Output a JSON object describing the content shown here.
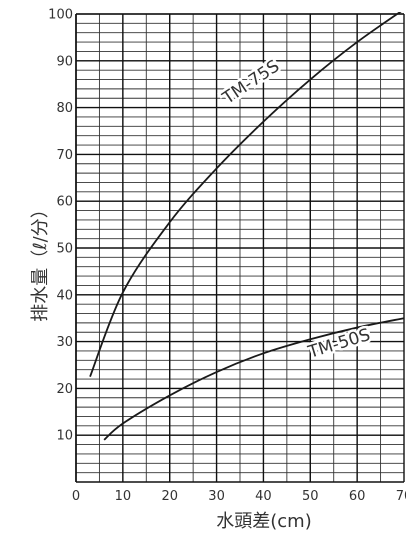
{
  "chart_data": {
    "type": "line",
    "title": "",
    "xlabel": "水頭差(cm)",
    "ylabel": "排水量（ℓ/分）",
    "xlim": [
      0,
      70
    ],
    "ylim": [
      0,
      100
    ],
    "x_ticks": [
      0,
      10,
      20,
      30,
      40,
      50,
      60,
      70
    ],
    "y_ticks": [
      10,
      20,
      30,
      40,
      50,
      60,
      70,
      80,
      90,
      100
    ],
    "x_tick_labels": [
      "0",
      "10",
      "20",
      "30",
      "40",
      "50",
      "60",
      "70"
    ],
    "y_tick_labels": [
      "10",
      "20",
      "30",
      "40",
      "50",
      "60",
      "70",
      "80",
      "90",
      "100"
    ],
    "grid": true,
    "grid_minor_x_step": 5,
    "grid_minor_y_step": 2,
    "series": [
      {
        "name": "TM-75S",
        "color": "#1a1a1a",
        "x": [
          3,
          10,
          20,
          30,
          40,
          50,
          60,
          70
        ],
        "y": [
          22.5,
          40.5,
          55.5,
          67,
          77,
          86,
          94,
          101
        ]
      },
      {
        "name": "TM-50S",
        "color": "#1a1a1a",
        "x": [
          6,
          10,
          20,
          30,
          40,
          50,
          60,
          70
        ],
        "y": [
          9,
          12.5,
          18.5,
          23.5,
          27.5,
          30.5,
          33,
          35
        ]
      }
    ]
  }
}
